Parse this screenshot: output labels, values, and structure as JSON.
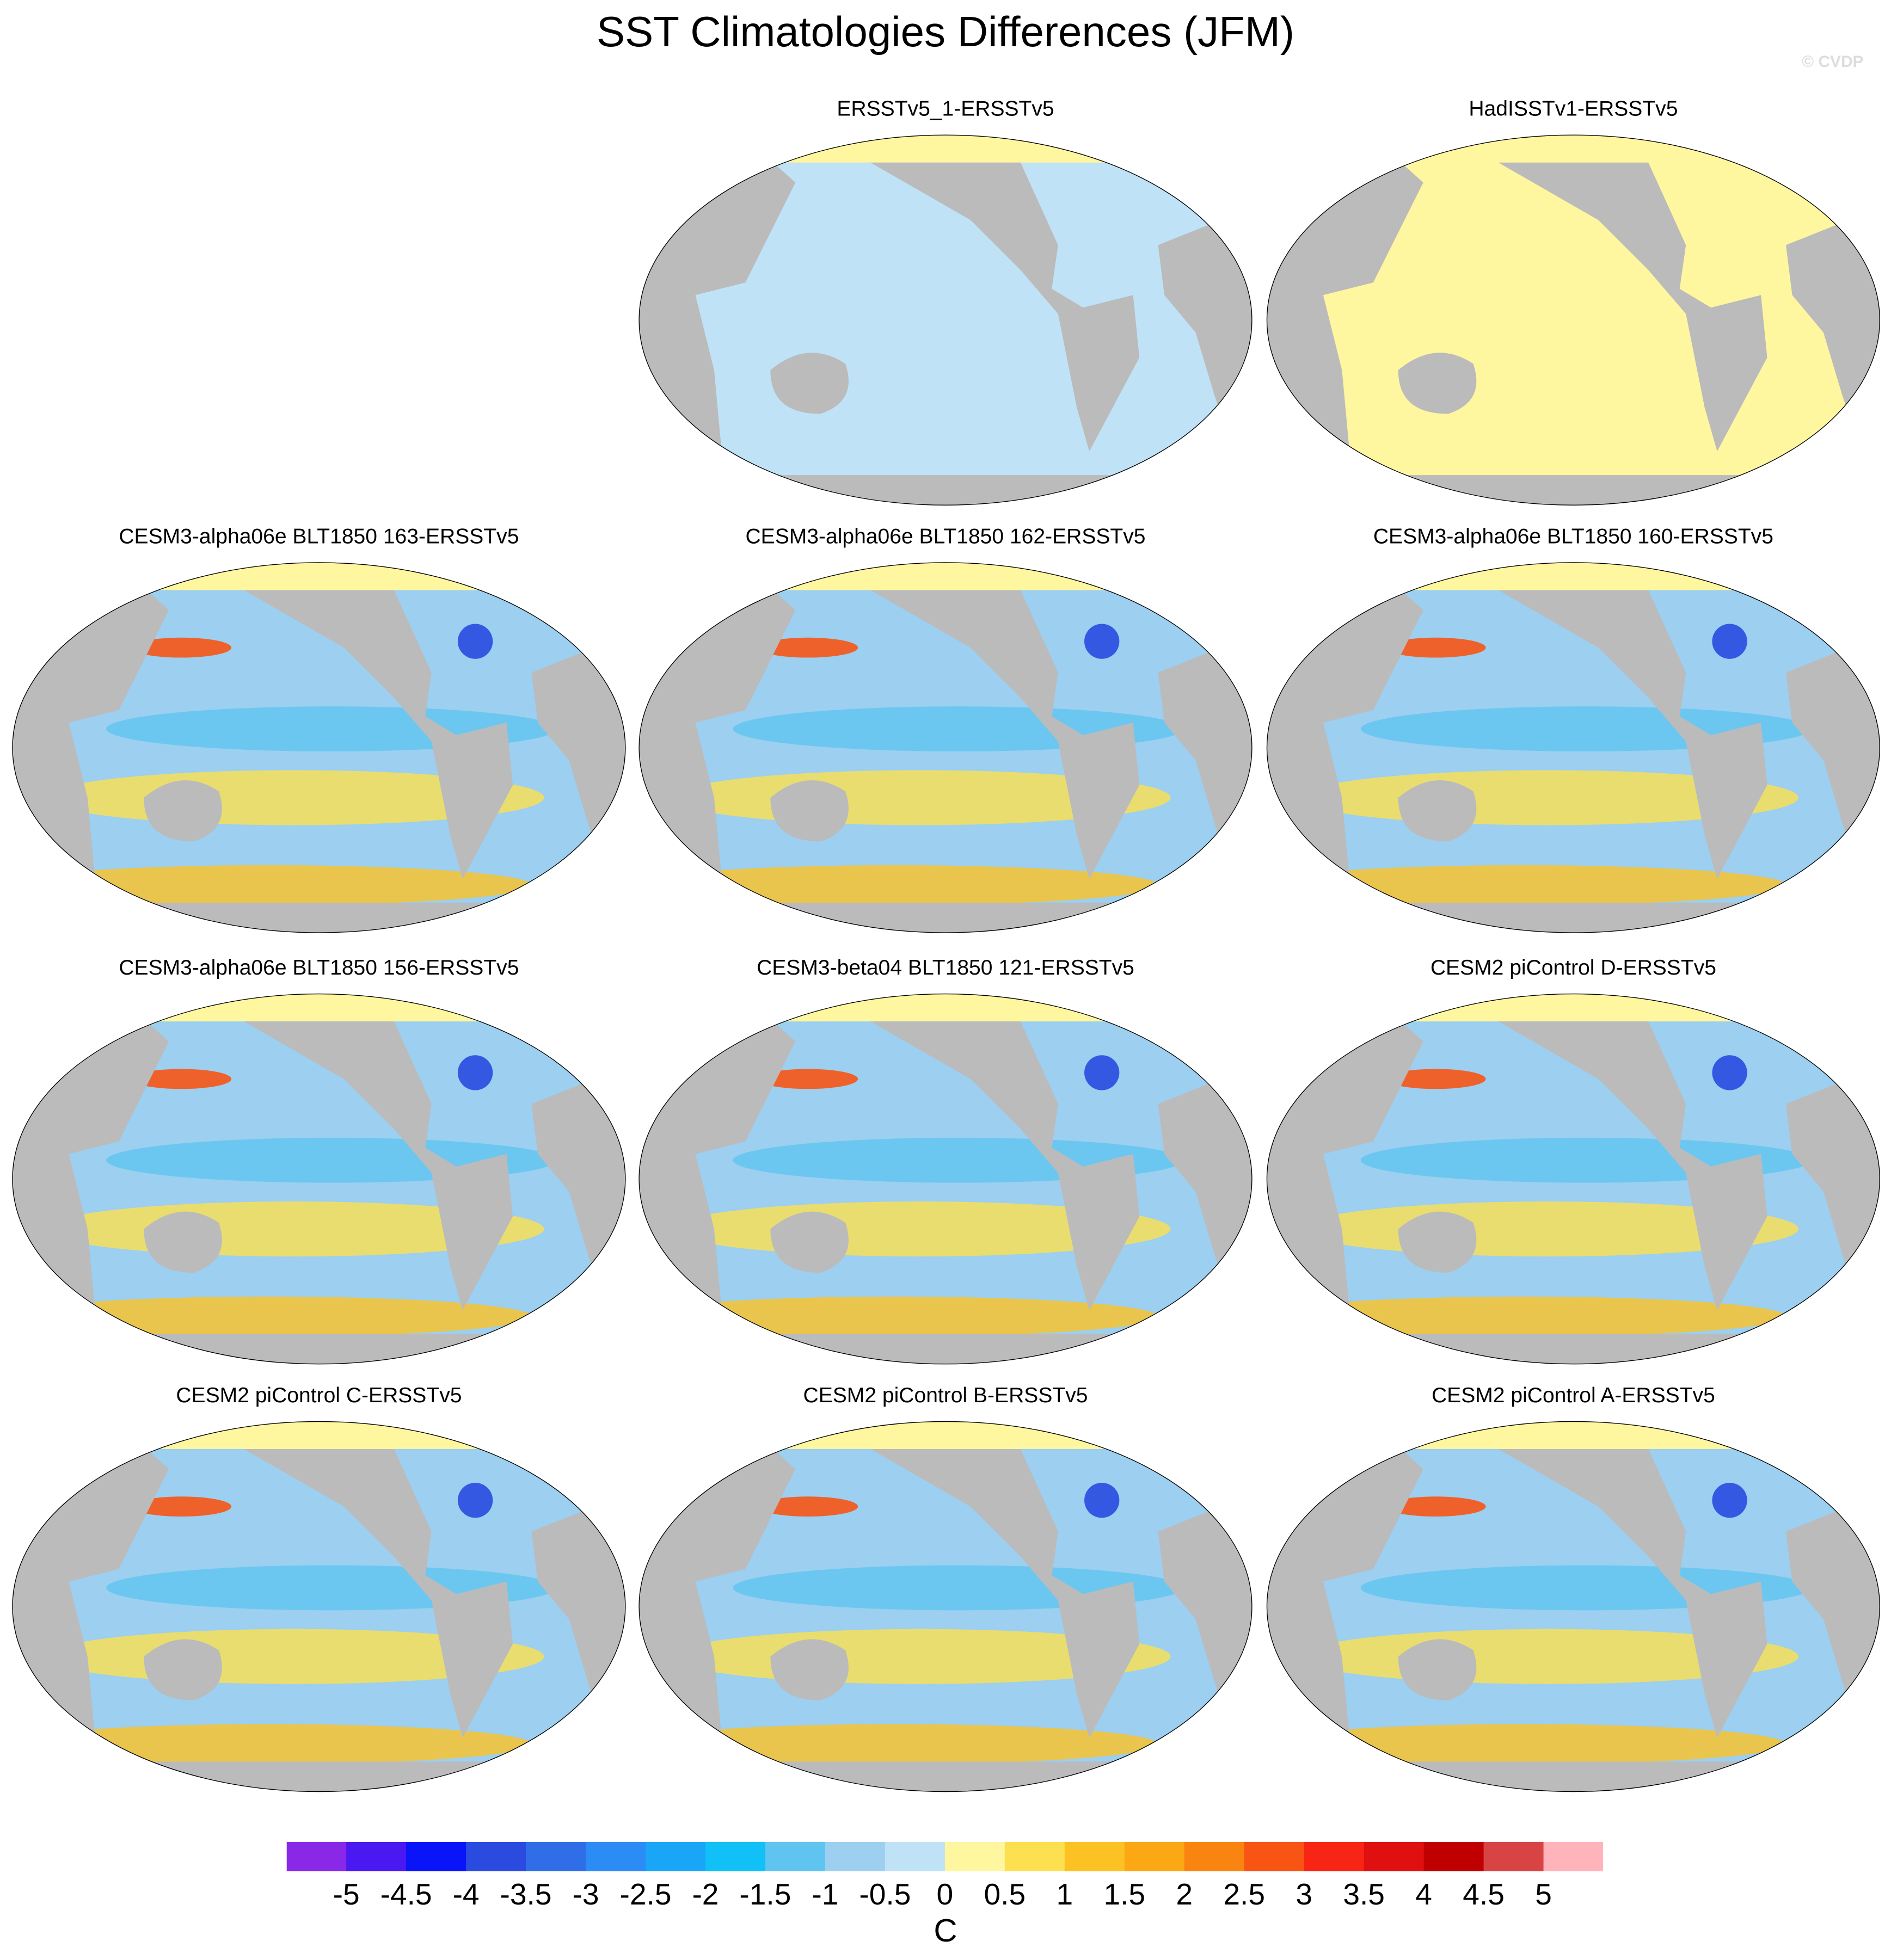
{
  "title": "SST Climatologies Differences (JFM)",
  "watermark": "© CVDP",
  "panels": [
    {
      "title": "ERSSTv5_1-ERSSTv5"
    },
    {
      "title": "HadISSTv1-ERSSTv5"
    },
    {
      "title": "CESM3-alpha06e BLT1850 163-ERSSTv5"
    },
    {
      "title": "CESM3-alpha06e BLT1850 162-ERSSTv5"
    },
    {
      "title": "CESM3-alpha06e BLT1850 160-ERSSTv5"
    },
    {
      "title": "CESM3-alpha06e BLT1850 156-ERSSTv5"
    },
    {
      "title": "CESM3-beta04 BLT1850 121-ERSSTv5"
    },
    {
      "title": "CESM2 piControl D-ERSSTv5"
    },
    {
      "title": "CESM2 piControl C-ERSSTv5"
    },
    {
      "title": "CESM2 piControl B-ERSSTv5"
    },
    {
      "title": "CESM2 piControl A-ERSSTv5"
    }
  ],
  "colorbar": {
    "labels": [
      -5,
      -4.5,
      -4,
      -3.5,
      -3,
      -2.5,
      -2,
      -1.5,
      -1,
      -0.5,
      0,
      0.5,
      1,
      1.5,
      2,
      2.5,
      3,
      3.5,
      4,
      4.5,
      5
    ],
    "colors": [
      "#8a28e8",
      "#4a18f0",
      "#0a14f8",
      "#2a4ae0",
      "#306ee8",
      "#2a8cf4",
      "#1aa6f6",
      "#10c0f6",
      "#60c4f0",
      "#9ccff0",
      "#c0e2f6",
      "#fff6a0",
      "#fde050",
      "#fcc224",
      "#fba814",
      "#f98410",
      "#f85414",
      "#f82414",
      "#e01010",
      "#c00000",
      "#d84444",
      "#ffb4bc"
    ],
    "unit": "C"
  }
}
